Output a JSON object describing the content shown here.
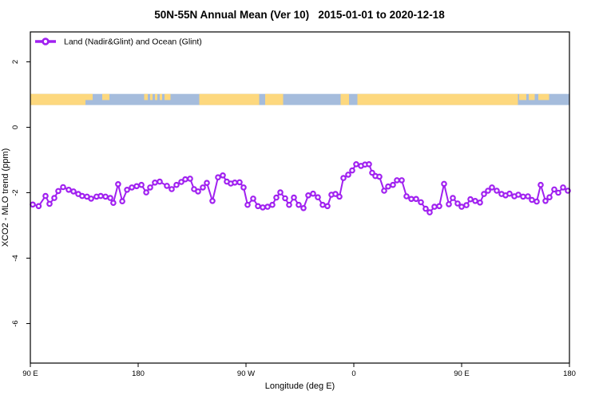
{
  "title": "50N-55N Annual Mean (Ver 10)   2015-01-01 to 2020-12-18",
  "legend": {
    "label": "Land (Nadir&Glint) and Ocean (Glint)",
    "marker": "open-circle-on-line"
  },
  "colors": {
    "series": "#A020F0",
    "marker_fill": "#FFFFFF",
    "land": "#FDD87E",
    "ocean": "#A5BCDC",
    "axis": "#000000",
    "background": "#FFFFFF"
  },
  "chart_data": {
    "type": "line",
    "title": "50N-55N Annual Mean (Ver 10)   2015-01-01 to 2020-12-18",
    "xlabel": "Longitude (deg E)",
    "ylabel": "XCO2 - MLO trend (ppm)",
    "x_axis": {
      "note": "x is degrees east of 90E, axis wraps past 360 (spans 450 deg)",
      "range_deg": [
        0,
        450
      ],
      "ticks": [
        {
          "deg": 0,
          "label": "90 E"
        },
        {
          "deg": 90,
          "label": "180"
        },
        {
          "deg": 180,
          "label": "90 W"
        },
        {
          "deg": 270,
          "label": "0"
        },
        {
          "deg": 360,
          "label": "90 E"
        },
        {
          "deg": 450,
          "label": "180"
        }
      ]
    },
    "y_axis": {
      "range": [
        -7.2,
        2.9
      ],
      "ticks": [
        {
          "value": 2,
          "label": "2"
        },
        {
          "value": 0,
          "label": "0"
        },
        {
          "value": -2,
          "label": "-2"
        },
        {
          "value": -4,
          "label": "-4"
        },
        {
          "value": -6,
          "label": "-6"
        }
      ],
      "grid": false
    },
    "map_strip": {
      "description": "land/ocean strip for 50N-55N band",
      "y_range_ppm": [
        0.68,
        1.02
      ],
      "land_segments_deg": [
        [
          0,
          46
        ],
        [
          141,
          191
        ],
        [
          196,
          211
        ],
        [
          259,
          266
        ],
        [
          273,
          407
        ]
      ],
      "land_speckles_deg": [
        [
          46,
          52
        ],
        [
          60,
          66
        ],
        [
          95,
          98
        ],
        [
          100,
          102
        ],
        [
          104,
          106
        ],
        [
          108,
          110
        ],
        [
          112,
          117
        ],
        [
          408,
          414
        ],
        [
          416,
          421
        ],
        [
          424,
          433
        ]
      ]
    },
    "series": [
      {
        "name": "Land (Nadir&Glint) and Ocean (Glint)",
        "color": "#A020F0",
        "marker": "open-circle",
        "points": [
          [
            2,
            -2.36
          ],
          [
            6.9,
            -2.41
          ],
          [
            12.7,
            -2.1
          ],
          [
            16,
            -2.34
          ],
          [
            20,
            -2.16
          ],
          [
            23.3,
            -1.95
          ],
          [
            27.3,
            -1.83
          ],
          [
            32,
            -1.91
          ],
          [
            36,
            -1.96
          ],
          [
            40,
            -2.04
          ],
          [
            43.3,
            -2.1
          ],
          [
            47.3,
            -2.12
          ],
          [
            50.7,
            -2.18
          ],
          [
            55.3,
            -2.12
          ],
          [
            58.7,
            -2.1
          ],
          [
            62.7,
            -2.12
          ],
          [
            66.7,
            -2.16
          ],
          [
            69.3,
            -2.31
          ],
          [
            73.3,
            -1.74
          ],
          [
            76.7,
            -2.26
          ],
          [
            80.7,
            -1.91
          ],
          [
            84.7,
            -1.84
          ],
          [
            88.7,
            -1.8
          ],
          [
            92.7,
            -1.76
          ],
          [
            96.7,
            -1.99
          ],
          [
            100,
            -1.84
          ],
          [
            104,
            -1.69
          ],
          [
            108,
            -1.66
          ],
          [
            114,
            -1.79
          ],
          [
            118,
            -1.89
          ],
          [
            122,
            -1.76
          ],
          [
            126,
            -1.67
          ],
          [
            129.3,
            -1.59
          ],
          [
            133.3,
            -1.57
          ],
          [
            136.7,
            -1.89
          ],
          [
            140,
            -1.96
          ],
          [
            144,
            -1.84
          ],
          [
            147.3,
            -1.7
          ],
          [
            152,
            -2.25
          ],
          [
            156.7,
            -1.53
          ],
          [
            160.7,
            -1.47
          ],
          [
            164,
            -1.66
          ],
          [
            167.3,
            -1.72
          ],
          [
            170.7,
            -1.69
          ],
          [
            174.7,
            -1.68
          ],
          [
            178,
            -1.84
          ],
          [
            181.3,
            -2.37
          ],
          [
            186,
            -2.18
          ],
          [
            190,
            -2.41
          ],
          [
            194,
            -2.45
          ],
          [
            198,
            -2.43
          ],
          [
            202,
            -2.37
          ],
          [
            205.3,
            -2.15
          ],
          [
            208.7,
            -1.99
          ],
          [
            212.7,
            -2.17
          ],
          [
            216,
            -2.37
          ],
          [
            220,
            -2.15
          ],
          [
            224,
            -2.37
          ],
          [
            228,
            -2.47
          ],
          [
            232,
            -2.08
          ],
          [
            236,
            -2.03
          ],
          [
            240,
            -2.14
          ],
          [
            244,
            -2.37
          ],
          [
            248,
            -2.41
          ],
          [
            251.3,
            -2.06
          ],
          [
            254.7,
            -2.04
          ],
          [
            258,
            -2.12
          ],
          [
            261.3,
            -1.55
          ],
          [
            265.3,
            -1.45
          ],
          [
            268.7,
            -1.32
          ],
          [
            272,
            -1.13
          ],
          [
            276,
            -1.18
          ],
          [
            279.3,
            -1.14
          ],
          [
            282.7,
            -1.13
          ],
          [
            285.3,
            -1.39
          ],
          [
            288,
            -1.49
          ],
          [
            291.3,
            -1.51
          ],
          [
            295.3,
            -1.94
          ],
          [
            298.7,
            -1.81
          ],
          [
            302.7,
            -1.76
          ],
          [
            306,
            -1.62
          ],
          [
            310,
            -1.62
          ],
          [
            314,
            -2.11
          ],
          [
            318,
            -2.19
          ],
          [
            322,
            -2.19
          ],
          [
            326,
            -2.29
          ],
          [
            330,
            -2.49
          ],
          [
            333.3,
            -2.6
          ],
          [
            337.3,
            -2.43
          ],
          [
            341.3,
            -2.41
          ],
          [
            345.3,
            -1.73
          ],
          [
            349.3,
            -2.35
          ],
          [
            352.7,
            -2.16
          ],
          [
            356.7,
            -2.33
          ],
          [
            360,
            -2.43
          ],
          [
            364,
            -2.38
          ],
          [
            367.3,
            -2.2
          ],
          [
            371.3,
            -2.25
          ],
          [
            375.3,
            -2.3
          ],
          [
            378.7,
            -2.04
          ],
          [
            382,
            -1.94
          ],
          [
            385.3,
            -1.84
          ],
          [
            389.3,
            -1.94
          ],
          [
            393.3,
            -2.04
          ],
          [
            396.7,
            -2.08
          ],
          [
            400,
            -2.03
          ],
          [
            404,
            -2.11
          ],
          [
            407.3,
            -2.06
          ],
          [
            411.3,
            -2.12
          ],
          [
            415.3,
            -2.11
          ],
          [
            418.7,
            -2.22
          ],
          [
            422.7,
            -2.27
          ],
          [
            426,
            -1.76
          ],
          [
            430,
            -2.25
          ],
          [
            433.3,
            -2.14
          ],
          [
            437.3,
            -1.9
          ],
          [
            440.7,
            -2
          ],
          [
            444.7,
            -1.84
          ],
          [
            448.7,
            -1.94
          ]
        ]
      }
    ],
    "legend_position": "top-left-inside"
  }
}
